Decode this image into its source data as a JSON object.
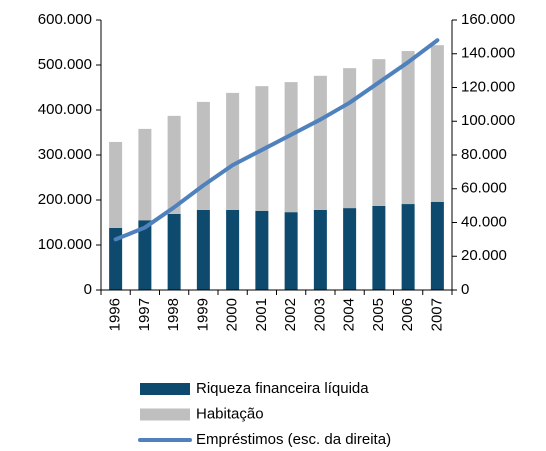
{
  "chart_data": {
    "type": "bar",
    "categories": [
      "1996",
      "1997",
      "1998",
      "1999",
      "2000",
      "2001",
      "2002",
      "2003",
      "2004",
      "2005",
      "2006",
      "2007"
    ],
    "stacked": true,
    "series": [
      {
        "name": "Riqueza financeira líquida",
        "color": "#0d4a6e",
        "values": [
          138000,
          155000,
          169000,
          178000,
          178000,
          176000,
          173000,
          178000,
          182000,
          187000,
          191000,
          196000
        ]
      },
      {
        "name": "Habitação",
        "color": "#bfbfbf",
        "values": [
          191000,
          203000,
          218000,
          240000,
          260000,
          277000,
          289000,
          298000,
          311000,
          326000,
          340000,
          348000
        ]
      },
      {
        "name": "Empréstimos (esc. da direita)",
        "type": "line",
        "axis": "y2",
        "color": "#4f81bd",
        "values": [
          30000,
          37000,
          49000,
          62000,
          74000,
          83000,
          92000,
          101000,
          111000,
          123000,
          135000,
          148000
        ]
      }
    ],
    "ylim": [
      0,
      600000
    ],
    "yticks": [
      0,
      {
        "value": 100000,
        "label": "100.000"
      },
      {
        "value": 200000,
        "label": "200.000"
      },
      {
        "value": 300000,
        "label": "300.000"
      },
      {
        "value": 400000,
        "label": "400.000"
      },
      {
        "value": 500000,
        "label": "500.000"
      },
      {
        "value": 600000,
        "label": "600.000"
      }
    ],
    "y2lim": [
      0,
      160000
    ],
    "y2ticks": [
      0,
      {
        "value": 20000,
        "label": "20.000"
      },
      {
        "value": 40000,
        "label": "40.000"
      },
      {
        "value": 60000,
        "label": "60.000"
      },
      {
        "value": 80000,
        "label": "80.000"
      },
      {
        "value": 100000,
        "label": "100.000"
      },
      {
        "value": 120000,
        "label": "120.000"
      },
      {
        "value": 140000,
        "label": "140.000"
      },
      {
        "value": 160000,
        "label": "160.000"
      }
    ],
    "grid": false,
    "legend": "bottom"
  }
}
